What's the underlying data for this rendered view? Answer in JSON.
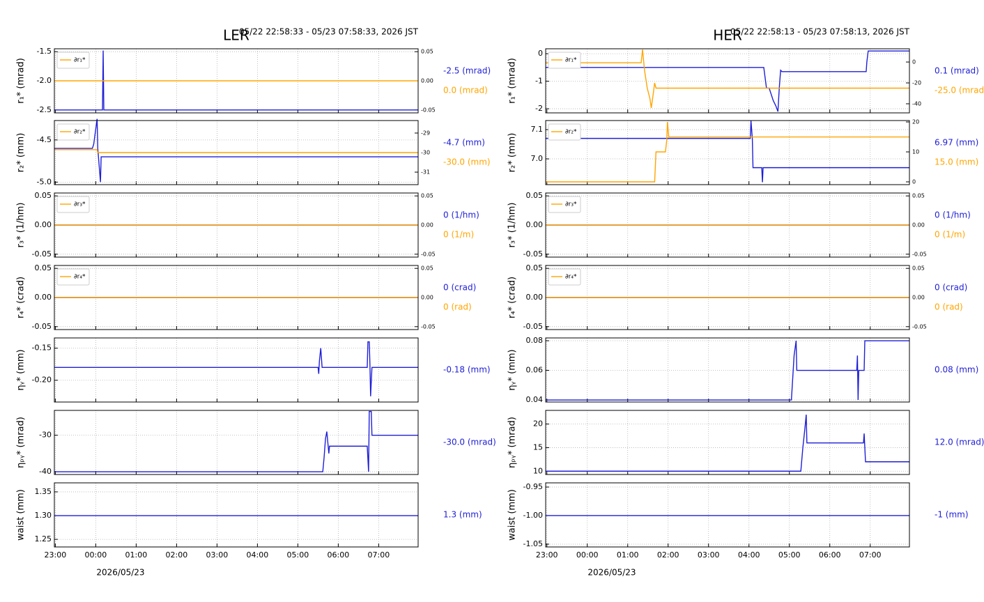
{
  "chart_data": [
    {
      "type": "line",
      "title": "LER",
      "subtitle": "05/22 22:58:33 - 05/23 07:58:33, 2026 JST",
      "xlim": [
        "22:58:33",
        "07:58:33"
      ],
      "xticks": [
        "23:00",
        "00:00",
        "01:00",
        "02:00",
        "03:00",
        "04:00",
        "05:00",
        "06:00",
        "07:00"
      ],
      "date_label": "2026/05/23",
      "grid": true,
      "panels": [
        {
          "ylabel": "r₁* (mrad)",
          "ylim": [
            -2.55,
            -1.45
          ],
          "yticks": [
            -1.5,
            {
              "value": -2,
              "label": "-2.0"
            },
            -2.5
          ],
          "y2lim": [
            -0.055,
            0.055
          ],
          "y2ticks": [
            0.05,
            {
              "value": 0,
              "label": "0.00"
            },
            -0.05
          ],
          "series": [
            {
              "color": "#1f1fd6",
              "x": [
                "22:58:33",
                "00:10",
                "00:11",
                "00:12",
                "07:58:33"
              ],
              "values": [
                -2.5,
                -2.5,
                -1.48,
                -2.5,
                -2.5
              ]
            },
            {
              "name": "∂r₁*",
              "color": "#ffa500",
              "axis": "y2",
              "x": [
                "22:58:33",
                "07:58:33"
              ],
              "values": [
                0,
                0
              ]
            }
          ],
          "readouts": [
            {
              "text": "-2.5 (mrad)",
              "color": "#1f1fd6"
            },
            {
              "text": "0.0 (mrad)",
              "color": "#ffa500"
            }
          ]
        },
        {
          "ylabel": "r₂* (mm)",
          "ylim": [
            -5.03,
            -4.27
          ],
          "yticks": [
            -4.5,
            {
              "value": -5,
              "label": "-5.0"
            }
          ],
          "y2lim": [
            -31.64,
            -28.36
          ],
          "y2ticks": [
            -29,
            -30,
            -31
          ],
          "series": [
            {
              "color": "#1f1fd6",
              "x": [
                "22:58:33",
                "23:55",
                "23:57",
                "00:02",
                "00:03",
                "00:05",
                "00:07",
                "00:08",
                "07:58:33"
              ],
              "values": [
                -4.6,
                -4.6,
                -4.55,
                -4.25,
                -4.6,
                -4.8,
                -5.0,
                -4.7,
                -4.7
              ]
            },
            {
              "name": "∂r₂*",
              "color": "#ffa500",
              "axis": "y2",
              "x": [
                "22:58:33",
                "00:02",
                "00:03",
                "07:58:33"
              ],
              "values": [
                -29.85,
                -29.85,
                -30,
                -30
              ]
            }
          ],
          "readouts": [
            {
              "text": "-4.7 (mm)",
              "color": "#1f1fd6"
            },
            {
              "text": "-30.0 (mm)",
              "color": "#ffa500"
            }
          ]
        },
        {
          "ylabel": "r₃* (1/hm)",
          "ylim": [
            -0.055,
            0.055
          ],
          "yticks": [
            0.05,
            {
              "value": 0,
              "label": "0.00"
            },
            -0.05
          ],
          "y2lim": [
            -0.055,
            0.055
          ],
          "y2ticks": [
            0.05,
            {
              "value": 0,
              "label": "0.00"
            },
            -0.05
          ],
          "series": [
            {
              "color": "#1f1fd6",
              "x": [
                "22:58:33",
                "07:58:33"
              ],
              "values": [
                0,
                0
              ]
            },
            {
              "name": "∂r₃*",
              "color": "#ffa500",
              "axis": "y2",
              "x": [
                "22:58:33",
                "07:58:33"
              ],
              "values": [
                0,
                0
              ]
            }
          ],
          "readouts": [
            {
              "text": "0 (1/hm)",
              "color": "#1f1fd6"
            },
            {
              "text": "0 (1/m)",
              "color": "#ffa500"
            }
          ]
        },
        {
          "ylabel": "r₄* (crad)",
          "ylim": [
            -0.055,
            0.055
          ],
          "yticks": [
            0.05,
            {
              "value": 0,
              "label": "0.00"
            },
            -0.05
          ],
          "y2lim": [
            -0.055,
            0.055
          ],
          "y2ticks": [
            0.05,
            {
              "value": 0,
              "label": "0.00"
            },
            -0.05
          ],
          "series": [
            {
              "color": "#1f1fd6",
              "x": [
                "22:58:33",
                "07:58:33"
              ],
              "values": [
                0,
                0
              ]
            },
            {
              "name": "∂r₄*",
              "color": "#ffa500",
              "axis": "y2",
              "x": [
                "22:58:33",
                "07:58:33"
              ],
              "values": [
                0,
                0
              ]
            }
          ],
          "readouts": [
            {
              "text": "0 (crad)",
              "color": "#1f1fd6"
            },
            {
              "text": "0 (rad)",
              "color": "#ffa500"
            }
          ]
        },
        {
          "ylabel": "ηᵧ* (mm)",
          "ylim": [
            -0.234,
            -0.134
          ],
          "yticks": [
            -0.15,
            {
              "value": -0.2,
              "label": "-0.20"
            }
          ],
          "series": [
            {
              "color": "#1f1fd6",
              "x": [
                "22:58:33",
                "05:30",
                "05:31",
                "05:32",
                "05:34",
                "05:36",
                "06:43",
                "06:44",
                "06:46",
                "06:47",
                "06:48",
                "06:50",
                "07:58:33"
              ],
              "values": [
                -0.18,
                -0.18,
                -0.19,
                -0.17,
                -0.15,
                -0.18,
                -0.18,
                -0.14,
                -0.14,
                -0.175,
                -0.225,
                -0.18,
                -0.18
              ]
            }
          ],
          "readouts": [
            {
              "text": "-0.18 (mm)",
              "color": "#1f1fd6"
            }
          ]
        },
        {
          "ylabel": "ηₚᵧ* (mrad)",
          "ylim": [
            -40.75,
            -23.2
          ],
          "yticks": [
            -30,
            -40
          ],
          "series": [
            {
              "color": "#1f1fd6",
              "x": [
                "22:58:33",
                "05:37",
                "05:39",
                "05:41",
                "05:43",
                "05:45",
                "05:46",
                "05:47",
                "06:43",
                "06:45",
                "06:46",
                "06:49",
                "06:50",
                "07:58:33"
              ],
              "values": [
                -40,
                -40,
                -36,
                -31,
                -29,
                -33,
                -35,
                -33,
                -33,
                -40,
                -23.5,
                -23.5,
                -30,
                -30
              ]
            }
          ],
          "readouts": [
            {
              "text": "-30.0 (mrad)",
              "color": "#1f1fd6"
            }
          ]
        },
        {
          "ylabel": "waist (mm)",
          "ylim": [
            1.234,
            1.369
          ],
          "yticks": [
            1.35,
            {
              "value": 1.3,
              "label": "1.30"
            },
            1.25
          ],
          "series": [
            {
              "color": "#1f1fd6",
              "x": [
                "22:58:33",
                "07:58:33"
              ],
              "values": [
                1.3,
                1.3
              ]
            }
          ],
          "readouts": [
            {
              "text": "1.3 (mm)",
              "color": "#1f1fd6"
            }
          ]
        }
      ]
    },
    {
      "type": "line",
      "title": "HER",
      "subtitle": "05/22 22:58:13 - 05/23 07:58:13, 2026 JST",
      "xlim": [
        "22:58:13",
        "07:58:13"
      ],
      "xticks": [
        "23:00",
        "00:00",
        "01:00",
        "02:00",
        "03:00",
        "04:00",
        "05:00",
        "06:00",
        "07:00"
      ],
      "date_label": "2026/05/23",
      "grid": true,
      "panels": [
        {
          "ylabel": "r₁* (mrad)",
          "ylim": [
            -2.15,
            0.18
          ],
          "yticks": [
            0,
            -1,
            -2
          ],
          "y2lim": [
            -48.7,
            12.7
          ],
          "y2ticks": [
            0,
            -20,
            -40
          ],
          "series": [
            {
              "color": "#1f1fd6",
              "x": [
                "22:58:13",
                "04:22",
                "04:26",
                "04:30",
                "04:36",
                "04:40",
                "04:43",
                "04:45",
                "04:47",
                "04:49",
                "06:54",
                "06:55",
                "06:57",
                "07:58:13"
              ],
              "values": [
                -0.5,
                -0.5,
                -1.25,
                -1.25,
                -1.7,
                -1.9,
                -2.1,
                -1.25,
                -0.6,
                -0.65,
                -0.65,
                -0.3,
                0.1,
                0.1
              ]
            },
            {
              "name": "∂r₁*",
              "color": "#ffa500",
              "axis": "y2",
              "x": [
                "22:58:13",
                "01:20",
                "01:22",
                "01:25",
                "01:29",
                "01:33",
                "01:35",
                "01:38",
                "01:40",
                "01:42",
                "07:58:13"
              ],
              "values": [
                -0.7,
                -0.7,
                12,
                -8,
                -25,
                -35,
                -44,
                -30,
                -20,
                -25,
                -25
              ]
            }
          ],
          "readouts": [
            {
              "text": "0.1 (mrad)",
              "color": "#1f1fd6"
            },
            {
              "text": "-25.0 (mrad)",
              "color": "#ffa500"
            }
          ]
        },
        {
          "ylabel": "r₂* (mm)",
          "ylim": [
            6.912,
            7.131
          ],
          "yticks": [
            7.1,
            {
              "value": 7,
              "label": "7.0"
            }
          ],
          "y2lim": [
            -0.93,
            20.47
          ],
          "y2ticks": [
            0,
            10,
            20
          ],
          "series": [
            {
              "color": "#1f1fd6",
              "x": [
                "22:58:13",
                "04:02",
                "04:03",
                "04:05",
                "04:06",
                "04:19",
                "04:20",
                "04:21",
                "07:58:13"
              ],
              "values": [
                7.07,
                7.07,
                7.13,
                7.07,
                6.97,
                6.97,
                6.92,
                6.97,
                6.97
              ]
            },
            {
              "name": "∂r₂*",
              "color": "#ffa500",
              "axis": "y2",
              "x": [
                "22:58:13",
                "01:40",
                "01:42",
                "01:56",
                "01:58",
                "01:59",
                "02:01",
                "07:58:13"
              ],
              "values": [
                0,
                0,
                10,
                10,
                14,
                20,
                15,
                15
              ]
            }
          ],
          "readouts": [
            {
              "text": "6.97 (mm)",
              "color": "#1f1fd6"
            },
            {
              "text": "15.0 (mm)",
              "color": "#ffa500"
            }
          ]
        },
        {
          "ylabel": "r₃* (1/hm)",
          "ylim": [
            -0.055,
            0.055
          ],
          "yticks": [
            0.05,
            {
              "value": 0,
              "label": "0.00"
            },
            -0.05
          ],
          "y2lim": [
            -0.055,
            0.055
          ],
          "y2ticks": [
            0.05,
            {
              "value": 0,
              "label": "0.00"
            },
            -0.05
          ],
          "series": [
            {
              "color": "#1f1fd6",
              "x": [
                "22:58:13",
                "07:58:13"
              ],
              "values": [
                0,
                0
              ]
            },
            {
              "name": "∂r₃*",
              "color": "#ffa500",
              "axis": "y2",
              "x": [
                "22:58:13",
                "07:58:13"
              ],
              "values": [
                0,
                0
              ]
            }
          ],
          "readouts": [
            {
              "text": "0 (1/hm)",
              "color": "#1f1fd6"
            },
            {
              "text": "0 (1/m)",
              "color": "#ffa500"
            }
          ]
        },
        {
          "ylabel": "r₄* (crad)",
          "ylim": [
            -0.055,
            0.055
          ],
          "yticks": [
            0.05,
            {
              "value": 0,
              "label": "0.00"
            },
            -0.05
          ],
          "y2lim": [
            -0.055,
            0.055
          ],
          "y2ticks": [
            0.05,
            {
              "value": 0,
              "label": "0.00"
            },
            -0.05
          ],
          "series": [
            {
              "color": "#1f1fd6",
              "x": [
                "22:58:13",
                "07:58:13"
              ],
              "values": [
                0,
                0
              ]
            },
            {
              "name": "∂r₄*",
              "color": "#ffa500",
              "axis": "y2",
              "x": [
                "22:58:13",
                "07:58:13"
              ],
              "values": [
                0,
                0
              ]
            }
          ],
          "readouts": [
            {
              "text": "0 (crad)",
              "color": "#1f1fd6"
            },
            {
              "text": "0 (rad)",
              "color": "#ffa500"
            }
          ]
        },
        {
          "ylabel": "ηᵧ* (mm)",
          "ylim": [
            0.0386,
            0.0819
          ],
          "yticks": [
            0.08,
            0.06,
            0.04
          ],
          "series": [
            {
              "color": "#1f1fd6",
              "x": [
                "22:58:13",
                "05:03",
                "05:05",
                "05:07",
                "05:10",
                "05:11",
                "06:40",
                "06:41",
                "06:42",
                "06:43",
                "06:51",
                "06:52",
                "07:58:13"
              ],
              "values": [
                0.04,
                0.04,
                0.055,
                0.07,
                0.08,
                0.06,
                0.06,
                0.07,
                0.04,
                0.06,
                0.06,
                0.08,
                0.08
              ]
            }
          ],
          "readouts": [
            {
              "text": "0.08 (mm)",
              "color": "#1f1fd6"
            }
          ]
        },
        {
          "ylabel": "ηₚᵧ* (mrad)",
          "ylim": [
            9.3,
            22.9
          ],
          "yticks": [
            20,
            15,
            10
          ],
          "series": [
            {
              "color": "#1f1fd6",
              "x": [
                "22:58:13",
                "05:17",
                "05:20",
                "05:23",
                "05:25",
                "05:26",
                "06:50",
                "06:51",
                "06:53",
                "07:58:13"
              ],
              "values": [
                10,
                10,
                15,
                19,
                22,
                16,
                16,
                18,
                12,
                12
              ]
            }
          ],
          "readouts": [
            {
              "text": "12.0 (mrad)",
              "color": "#1f1fd6"
            }
          ]
        },
        {
          "ylabel": "waist (mm)",
          "ylim": [
            -1.0549,
            -0.9427
          ],
          "yticks": [
            -0.95,
            {
              "value": -1,
              "label": "-1.00"
            },
            -1.05
          ],
          "series": [
            {
              "color": "#1f1fd6",
              "x": [
                "22:58:13",
                "07:58:13"
              ],
              "values": [
                -1,
                -1
              ]
            }
          ],
          "readouts": [
            {
              "text": "-1 (mm)",
              "color": "#1f1fd6"
            }
          ]
        }
      ]
    }
  ]
}
